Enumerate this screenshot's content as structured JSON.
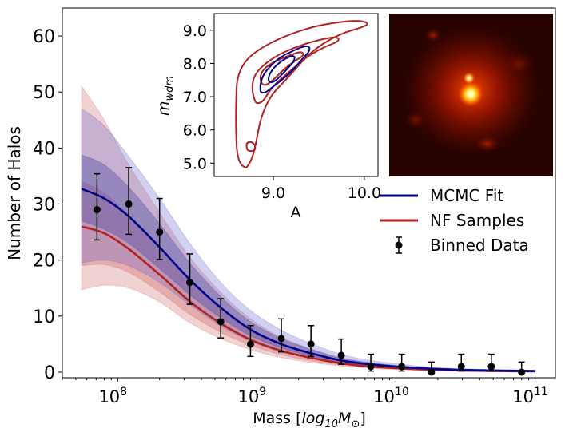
{
  "chart_data": {
    "type": "line",
    "xlabel_prefix": "Mass [",
    "xlabel_math": "log",
    "xlabel_sub": "10",
    "xlabel_math2": "M",
    "xlabel_sub2": "⊙",
    "xlabel_suffix": "]",
    "ylabel": "Number of Halos",
    "xscale": "log",
    "xlim": [
      40000000.0,
      140000000000.0
    ],
    "ylim": [
      -1,
      65
    ],
    "y_ticks": [
      0,
      10,
      20,
      30,
      40,
      50,
      60
    ],
    "x_ticks": [
      {
        "base": "10",
        "exp": "8",
        "value": 100000000.0
      },
      {
        "base": "10",
        "exp": "9",
        "value": 1000000000.0
      },
      {
        "base": "10",
        "exp": "10",
        "value": 10000000000.0
      },
      {
        "base": "10",
        "exp": "11",
        "value": 100000000000.0
      }
    ],
    "legend": {
      "position": "center-right",
      "entries": [
        {
          "label": "MCMC Fit",
          "color": "#00008b",
          "kind": "line"
        },
        {
          "label": "NF Samples",
          "color": "#b22222",
          "kind": "line"
        },
        {
          "label": "Binned Data",
          "color": "#000000",
          "kind": "errorbar"
        }
      ]
    },
    "mcmc_fit": {
      "name": "MCMC Fit",
      "color": "#00008b",
      "x": [
        55000000.0,
        80000000.0,
        120000000.0,
        200000000.0,
        330000000.0,
        550000000.0,
        900000000.0,
        1500000000.0,
        2500000000.0,
        4000000000.0,
        6500000000.0,
        11000000000.0,
        18000000000.0,
        30000000000.0,
        50000000000.0,
        100000000000.0
      ],
      "y": [
        32.7,
        31.0,
        27.8,
        22.3,
        16.5,
        11.5,
        7.6,
        5.0,
        3.3,
        2.1,
        1.4,
        0.9,
        0.6,
        0.4,
        0.3,
        0.2
      ],
      "band_inner_upper": [
        38.8,
        37.0,
        33.0,
        26.5,
        19.5,
        13.5,
        9.0,
        6.0,
        4.0,
        2.5,
        1.7,
        1.1,
        0.7,
        0.5,
        0.35,
        0.25
      ],
      "band_inner_lower": [
        27.0,
        25.5,
        23.0,
        18.5,
        13.8,
        9.7,
        6.5,
        4.3,
        2.8,
        1.8,
        1.2,
        0.8,
        0.5,
        0.3,
        0.2,
        0.15
      ],
      "band_outer_upper": [
        47.0,
        44.0,
        38.5,
        31.0,
        23.0,
        16.0,
        11.0,
        7.5,
        5.0,
        3.2,
        2.1,
        1.4,
        0.9,
        0.6,
        0.45,
        0.3
      ],
      "band_outer_lower": [
        19.5,
        20.0,
        19.0,
        16.0,
        12.0,
        8.2,
        5.5,
        3.6,
        2.4,
        1.5,
        1.0,
        0.65,
        0.4,
        0.25,
        0.15,
        0.1
      ]
    },
    "nf_samples": {
      "name": "NF Samples",
      "color": "#b22222",
      "x": [
        55000000.0,
        80000000.0,
        120000000.0,
        200000000.0,
        330000000.0,
        550000000.0,
        900000000.0,
        1500000000.0,
        2500000000.0,
        4000000000.0,
        6500000000.0,
        11000000000.0,
        18000000000.0,
        30000000000.0,
        50000000000.0,
        100000000000.0
      ],
      "y": [
        26.0,
        24.8,
        22.0,
        17.4,
        12.6,
        8.7,
        5.8,
        3.8,
        2.5,
        1.6,
        1.0,
        0.65,
        0.45,
        0.3,
        0.2,
        0.15
      ],
      "band_inner_upper": [
        34.0,
        32.0,
        28.0,
        22.5,
        16.5,
        11.5,
        7.7,
        5.0,
        3.3,
        2.1,
        1.4,
        0.9,
        0.6,
        0.4,
        0.3,
        0.2
      ],
      "band_inner_lower": [
        19.0,
        19.2,
        17.8,
        14.3,
        10.3,
        7.1,
        4.8,
        3.1,
        2.0,
        1.3,
        0.85,
        0.55,
        0.35,
        0.22,
        0.15,
        0.1
      ],
      "band_outer_upper": [
        51.0,
        45.0,
        37.0,
        28.5,
        20.5,
        14.2,
        9.5,
        6.2,
        4.1,
        2.6,
        1.7,
        1.1,
        0.75,
        0.5,
        0.35,
        0.25
      ],
      "band_outer_lower": [
        14.7,
        15.5,
        15.0,
        12.5,
        8.8,
        6.0,
        4.0,
        2.6,
        1.7,
        1.1,
        0.7,
        0.45,
        0.3,
        0.18,
        0.12,
        0.08
      ]
    },
    "binned_data": {
      "name": "Binned Data",
      "x": [
        71000000.0,
        120000000.0,
        200000000.0,
        330000000.0,
        550000000.0,
        900000000.0,
        1500000000.0,
        2450000000.0,
        4050000000.0,
        6600000000.0,
        11000000000.0,
        18000000000.0,
        29500000000.0,
        48500000000.0,
        80000000000.0
      ],
      "y": [
        29,
        30,
        25,
        16,
        9,
        5,
        6,
        5,
        3,
        1,
        1,
        0,
        1,
        1,
        0
      ],
      "yerr_upper": [
        6.4,
        6.5,
        6.0,
        5.1,
        4.1,
        3.3,
        3.5,
        3.3,
        2.9,
        2.2,
        2.2,
        1.8,
        2.2,
        2.2,
        1.8
      ],
      "yerr_lower": [
        5.4,
        5.4,
        4.9,
        3.9,
        2.9,
        2.2,
        2.4,
        2.2,
        1.6,
        0.8,
        0.8,
        0,
        0.8,
        0.8,
        0
      ]
    },
    "inset_contour": {
      "type": "contour",
      "xlabel": "A",
      "ylabel_base": "m",
      "ylabel_sub": "wdm",
      "xlim": [
        8.35,
        10.15
      ],
      "ylim": [
        4.6,
        9.5
      ],
      "x_ticks": [
        "9.0",
        "10.0"
      ],
      "x_tick_values": [
        9.0,
        10.0
      ],
      "y_ticks": [
        "5.0",
        "6.0",
        "7.0",
        "8.0",
        "9.0"
      ],
      "y_tick_values": [
        5.0,
        6.0,
        7.0,
        8.0,
        9.0
      ],
      "nf_color": "#b22222",
      "mcmc_color": "#00008b"
    },
    "inset_image": {
      "type": "heatmap",
      "colormap": "hot",
      "background": "#1a0200"
    }
  }
}
